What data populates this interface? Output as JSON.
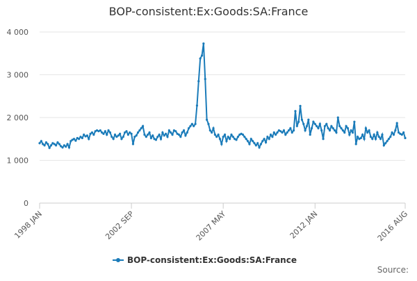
{
  "chart_data": {
    "type": "line",
    "title": "BOP-consistent:Ex:Goods:SA:France",
    "source": "Source:",
    "categories": [
      "1998 JAN",
      null,
      null,
      null,
      null,
      null,
      null,
      null,
      null,
      null,
      null,
      null,
      null,
      null,
      null,
      null,
      null,
      null,
      null,
      null,
      null,
      null,
      null,
      null,
      null,
      null,
      null,
      null,
      null,
      null,
      null,
      null,
      null,
      null,
      null,
      null,
      null,
      null,
      null,
      null,
      null,
      null,
      null,
      null,
      null,
      null,
      null,
      null,
      null,
      null,
      null,
      null,
      null,
      null,
      null,
      null,
      "2002 SEP",
      null,
      null,
      null,
      null,
      null,
      null,
      null,
      null,
      null,
      null,
      null,
      null,
      null,
      null,
      null,
      null,
      null,
      null,
      null,
      null,
      null,
      null,
      null,
      null,
      null,
      null,
      null,
      null,
      null,
      null,
      null,
      null,
      null,
      null,
      null,
      null,
      null,
      null,
      null,
      null,
      null,
      null,
      null,
      null,
      null,
      null,
      null,
      null,
      null,
      null,
      null,
      null,
      null,
      null,
      null,
      "2007 MAY",
      null,
      null,
      null,
      null,
      null,
      null,
      null,
      null,
      null,
      null,
      null,
      null,
      null,
      null,
      null,
      null,
      null,
      null,
      null,
      null,
      null,
      null,
      null,
      null,
      null,
      null,
      null,
      null,
      null,
      null,
      null,
      null,
      null,
      null,
      null,
      null,
      null,
      null,
      null,
      null,
      null,
      null,
      null,
      null,
      null,
      null,
      null,
      null,
      null,
      null,
      null,
      null,
      null,
      null,
      null,
      "2012 JAN",
      null,
      null,
      null,
      null,
      null,
      null,
      null,
      null,
      null,
      null,
      null,
      null,
      null,
      null,
      null,
      null,
      null,
      null,
      null,
      null,
      null,
      null,
      null,
      null,
      null,
      null,
      null,
      null,
      null,
      null,
      null,
      null,
      null,
      null,
      null,
      null,
      null,
      null,
      null,
      null,
      null,
      null,
      null,
      null,
      null,
      null,
      null,
      null,
      null,
      null,
      null,
      null,
      null,
      null,
      "2016 AUG"
    ],
    "series": [
      {
        "name": "BOP-consistent:Ex:Goods:SA:France",
        "color": "#1a7bb9",
        "values": [
          1400,
          1450,
          1380,
          1350,
          1420,
          1380,
          1290,
          1350,
          1400,
          1380,
          1350,
          1420,
          1380,
          1330,
          1300,
          1350,
          1320,
          1380,
          1300,
          1450,
          1480,
          1500,
          1460,
          1520,
          1500,
          1550,
          1520,
          1600,
          1560,
          1580,
          1500,
          1620,
          1650,
          1600,
          1680,
          1700,
          1680,
          1700,
          1650,
          1620,
          1680,
          1600,
          1700,
          1650,
          1550,
          1500,
          1600,
          1550,
          1580,
          1620,
          1500,
          1550,
          1650,
          1680,
          1600,
          1650,
          1620,
          1380,
          1550,
          1580,
          1650,
          1700,
          1750,
          1800,
          1600,
          1550,
          1600,
          1650,
          1520,
          1580,
          1500,
          1480,
          1550,
          1600,
          1500,
          1650,
          1580,
          1620,
          1550,
          1700,
          1650,
          1600,
          1700,
          1680,
          1620,
          1600,
          1550,
          1650,
          1700,
          1580,
          1650,
          1750,
          1800,
          1850,
          1800,
          1850,
          2280,
          2850,
          3380,
          3450,
          3730,
          2900,
          1950,
          1850,
          1700,
          1650,
          1750,
          1600,
          1550,
          1600,
          1500,
          1380,
          1550,
          1600,
          1450,
          1550,
          1500,
          1600,
          1550,
          1500,
          1480,
          1550,
          1600,
          1620,
          1600,
          1550,
          1500,
          1450,
          1380,
          1500,
          1450,
          1400,
          1350,
          1400,
          1300,
          1380,
          1450,
          1500,
          1420,
          1550,
          1500,
          1600,
          1550,
          1650,
          1600,
          1650,
          1700,
          1680,
          1650,
          1700,
          1600,
          1650,
          1700,
          1750,
          1650,
          1700,
          2150,
          1800,
          1900,
          2270,
          1950,
          1850,
          1700,
          1800,
          1950,
          1600,
          1750,
          1900,
          1850,
          1800,
          1750,
          1850,
          1700,
          1500,
          1800,
          1850,
          1750,
          1700,
          1800,
          1750,
          1700,
          1650,
          2000,
          1800,
          1750,
          1700,
          1650,
          1800,
          1750,
          1600,
          1700,
          1650,
          1900,
          1380,
          1550,
          1500,
          1520,
          1600,
          1500,
          1750,
          1650,
          1700,
          1550,
          1500,
          1600,
          1500,
          1650,
          1550,
          1500,
          1600,
          1350,
          1400,
          1450,
          1500,
          1550,
          1650,
          1600,
          1700,
          1870,
          1650,
          1620,
          1600,
          1650,
          1520
        ]
      }
    ],
    "ylim": [
      0,
      4000
    ],
    "yticks": [
      0,
      {
        "value": 1000,
        "label": "1 000"
      },
      {
        "value": 2000,
        "label": "2 000"
      },
      {
        "value": 3000,
        "label": "3 000"
      },
      {
        "value": 4000,
        "label": "4 000"
      }
    ],
    "grid": true
  }
}
